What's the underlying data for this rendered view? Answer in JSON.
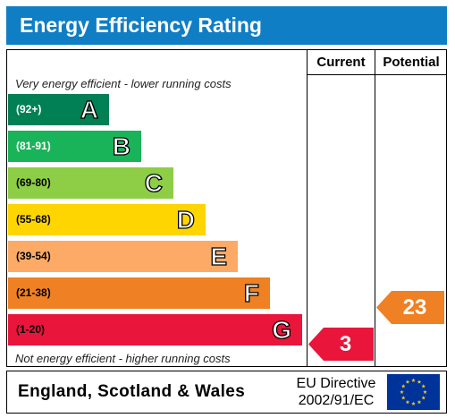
{
  "title": "Energy Efficiency Rating",
  "columns": {
    "current": "Current",
    "potential": "Potential"
  },
  "captions": {
    "top": "Very energy efficient - lower running costs",
    "bottom": "Not energy efficient - higher running costs"
  },
  "bands": [
    {
      "range": "(92+)",
      "letter": "A",
      "color": "#008054",
      "text_color": "#ffffff"
    },
    {
      "range": "(81-91)",
      "letter": "B",
      "color": "#19b459",
      "text_color": "#ffffff"
    },
    {
      "range": "(69-80)",
      "letter": "C",
      "color": "#8dce46",
      "text_color": "#000000"
    },
    {
      "range": "(55-68)",
      "letter": "D",
      "color": "#ffd500",
      "text_color": "#000000"
    },
    {
      "range": "(39-54)",
      "letter": "E",
      "color": "#fcaa65",
      "text_color": "#000000"
    },
    {
      "range": "(21-38)",
      "letter": "F",
      "color": "#ef8023",
      "text_color": "#000000"
    },
    {
      "range": "(1-20)",
      "letter": "G",
      "color": "#e9153b",
      "text_color": "#000000"
    }
  ],
  "ratings": {
    "current": {
      "value": "3",
      "band": "G",
      "color": "#e9153b"
    },
    "potential": {
      "value": "23",
      "band": "F",
      "color": "#ef8023"
    }
  },
  "footer": {
    "region": "England, Scotland & Wales",
    "directive_line1": "EU Directive",
    "directive_line2": "2002/91/EC",
    "flag_icon": "eu-flag-icon"
  }
}
